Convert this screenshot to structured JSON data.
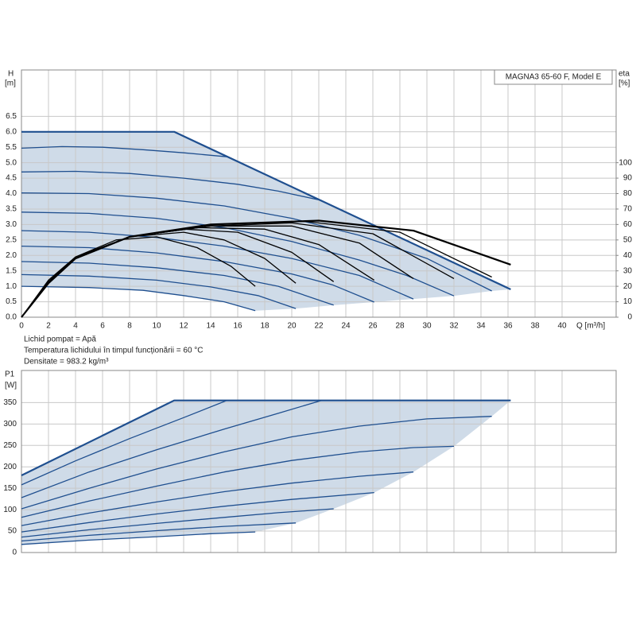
{
  "chart_data": [
    {
      "type": "line",
      "title": "MAGNA3 65-60 F, Model E",
      "ylabel": "H",
      "yunit": "[m]",
      "y2label": "eta",
      "y2unit": "[%]",
      "xlabel": "Q [m³/h]",
      "notes": [
        "Lichid pompat = Apă",
        "Temperatura lichidului în timpul funcționării = 60 °C",
        "Densitate = 983.2 kg/m³"
      ],
      "xlim": [
        0,
        44
      ],
      "ylim": [
        0,
        8
      ],
      "y2lim": [
        0,
        160
      ],
      "xticks": [
        0,
        2,
        4,
        6,
        8,
        10,
        12,
        14,
        16,
        18,
        20,
        22,
        24,
        26,
        28,
        30,
        32,
        34,
        36,
        38,
        40
      ],
      "yticks": [
        {
          "value": 0,
          "label": "0.0"
        },
        0.5,
        {
          "value": 1,
          "label": "1.0"
        },
        1.5,
        {
          "value": 2,
          "label": "2.0"
        },
        2.5,
        {
          "value": 3,
          "label": "3.0"
        },
        3.5,
        {
          "value": 4,
          "label": "4.0"
        },
        4.5,
        {
          "value": 5,
          "label": "5.0"
        },
        5.5,
        {
          "value": 6,
          "label": "6.0"
        },
        6.5
      ],
      "y2ticks": [
        0,
        10,
        20,
        30,
        40,
        50,
        60,
        70,
        80,
        90,
        100
      ],
      "grid": true,
      "xtick_labels": true,
      "fill_color": "#cfdbe8",
      "series": [
        {
          "color": "#1f4f8f",
          "line_width": 2.2,
          "x": [
            0,
            11.3,
            36.2
          ],
          "values": [
            6,
            6,
            0.9
          ]
        },
        {
          "color": "#1f4f8f",
          "x": [
            0,
            3,
            6,
            9,
            12,
            15.2
          ],
          "values": [
            5.47,
            5.52,
            5.5,
            5.42,
            5.32,
            5.19
          ]
        },
        {
          "color": "#1f4f8f",
          "x": [
            0,
            4,
            8,
            12,
            16,
            19,
            22.2
          ],
          "values": [
            4.7,
            4.72,
            4.65,
            4.5,
            4.3,
            4.08,
            3.78
          ]
        },
        {
          "color": "#1f4f8f",
          "x": [
            0,
            5,
            10,
            15,
            20,
            25,
            30,
            34.8
          ],
          "values": [
            4.02,
            4.0,
            3.85,
            3.6,
            3.2,
            2.65,
            1.9,
            0.85
          ]
        },
        {
          "color": "#1f4f8f",
          "x": [
            0,
            5,
            10,
            15,
            20,
            25,
            28.5,
            32
          ],
          "values": [
            3.4,
            3.36,
            3.2,
            2.9,
            2.45,
            1.85,
            1.35,
            0.69
          ]
        },
        {
          "color": "#1f4f8f",
          "x": [
            0,
            5,
            10,
            15,
            20,
            25,
            29
          ],
          "values": [
            2.8,
            2.75,
            2.58,
            2.3,
            1.9,
            1.35,
            0.59
          ]
        },
        {
          "color": "#1f4f8f",
          "x": [
            0,
            5,
            10,
            15,
            20,
            23,
            26.1
          ],
          "values": [
            2.3,
            2.25,
            2.08,
            1.8,
            1.4,
            1.05,
            0.49
          ]
        },
        {
          "color": "#1f4f8f",
          "x": [
            0,
            5,
            10,
            15,
            19,
            23.1
          ],
          "values": [
            1.8,
            1.75,
            1.6,
            1.35,
            1.0,
            0.39
          ]
        },
        {
          "color": "#1f4f8f",
          "x": [
            0,
            5,
            10,
            14,
            17.5,
            20.3
          ],
          "values": [
            1.38,
            1.33,
            1.2,
            0.98,
            0.7,
            0.28
          ]
        },
        {
          "color": "#1f4f8f",
          "x": [
            0,
            5,
            9,
            12,
            15,
            17.3
          ],
          "values": [
            1.0,
            0.96,
            0.87,
            0.7,
            0.5,
            0.21
          ]
        },
        {
          "color": "#000000",
          "axis": "y2",
          "x": [
            0,
            2,
            4,
            7,
            10,
            13,
            15.5,
            17.3
          ],
          "values": [
            0,
            24,
            39,
            50,
            52,
            45,
            33,
            20
          ]
        },
        {
          "color": "#000000",
          "axis": "y2",
          "x": [
            0,
            2,
            4,
            8,
            12,
            15,
            18,
            20.3
          ],
          "values": [
            0,
            23,
            39,
            52,
            55,
            50,
            38,
            22
          ]
        },
        {
          "color": "#000000",
          "axis": "y2",
          "x": [
            0,
            2,
            4,
            8,
            12,
            16,
            20,
            23.1
          ],
          "values": [
            0,
            23,
            38,
            52,
            57,
            55,
            42,
            23
          ]
        },
        {
          "color": "#000000",
          "axis": "y2",
          "x": [
            0,
            2,
            4,
            8,
            13,
            18,
            22,
            26.1
          ],
          "values": [
            0,
            22,
            38,
            52,
            58,
            57,
            47,
            24
          ]
        },
        {
          "color": "#000000",
          "axis": "y2",
          "x": [
            0,
            2,
            4,
            8,
            14,
            20,
            25,
            29
          ],
          "values": [
            0,
            22,
            38,
            52,
            59,
            59,
            48,
            25
          ]
        },
        {
          "color": "#000000",
          "axis": "y2",
          "x": [
            0,
            2,
            4,
            8,
            14,
            20,
            26,
            32
          ],
          "values": [
            0,
            22,
            38,
            52,
            59,
            61,
            54,
            25
          ]
        },
        {
          "color": "#000000",
          "axis": "y2",
          "x": [
            0,
            2,
            4,
            8,
            14,
            21,
            28,
            34.8
          ],
          "values": [
            0,
            22,
            38,
            52,
            60,
            62,
            55,
            26
          ]
        },
        {
          "color": "#000000",
          "axis": "y2",
          "line_width": 2.2,
          "x": [
            0,
            2,
            4,
            8,
            14,
            22,
            29,
            36.2
          ],
          "values": [
            0,
            22,
            38,
            52,
            60,
            62.5,
            56,
            34
          ]
        }
      ]
    },
    {
      "type": "line",
      "ylabel": "P1",
      "yunit": "[W]",
      "xlim": [
        0,
        44
      ],
      "ylim": [
        0,
        425
      ],
      "xticks": [
        0,
        2,
        4,
        6,
        8,
        10,
        12,
        14,
        16,
        18,
        20,
        22,
        24,
        26,
        28,
        30,
        32,
        34,
        36,
        38,
        40
      ],
      "yticks": [
        0,
        50,
        100,
        150,
        200,
        250,
        300,
        350
      ],
      "grid": true,
      "xtick_labels": false,
      "fill_color": "#cfdbe8",
      "series": [
        {
          "color": "#1f4f8f",
          "line_width": 2.2,
          "x": [
            0,
            11.3,
            36.2
          ],
          "values": [
            180,
            355,
            355
          ]
        },
        {
          "color": "#1f4f8f",
          "x": [
            0,
            4,
            8,
            12,
            15.2
          ],
          "values": [
            158,
            214,
            266,
            315,
            355
          ]
        },
        {
          "color": "#1f4f8f",
          "x": [
            0,
            5,
            10,
            15,
            19,
            22.2
          ],
          "values": [
            128,
            188,
            240,
            288,
            325,
            355
          ]
        },
        {
          "color": "#1f4f8f",
          "x": [
            0,
            5,
            10,
            15,
            20,
            25,
            30,
            34.8
          ],
          "values": [
            102,
            150,
            195,
            235,
            270,
            295,
            312,
            318
          ]
        },
        {
          "color": "#1f4f8f",
          "x": [
            0,
            5,
            10,
            15,
            20,
            25,
            29,
            32
          ],
          "values": [
            82,
            120,
            155,
            188,
            215,
            235,
            245,
            248
          ]
        },
        {
          "color": "#1f4f8f",
          "x": [
            0,
            5,
            10,
            15,
            20,
            25,
            29
          ],
          "values": [
            63,
            92,
            118,
            142,
            162,
            178,
            188
          ]
        },
        {
          "color": "#1f4f8f",
          "x": [
            0,
            5,
            10,
            15,
            20,
            26.1
          ],
          "values": [
            48,
            70,
            90,
            108,
            124,
            140
          ]
        },
        {
          "color": "#1f4f8f",
          "x": [
            0,
            5,
            10,
            15,
            19,
            23.1
          ],
          "values": [
            36,
            53,
            68,
            82,
            93,
            102
          ]
        },
        {
          "color": "#1f4f8f",
          "x": [
            0,
            5,
            10,
            15,
            20.3
          ],
          "values": [
            27,
            40,
            51,
            61,
            69
          ]
        },
        {
          "color": "#1f4f8f",
          "x": [
            0,
            5,
            10,
            14,
            17.3
          ],
          "values": [
            19,
            29,
            37,
            44,
            48
          ]
        }
      ]
    }
  ]
}
